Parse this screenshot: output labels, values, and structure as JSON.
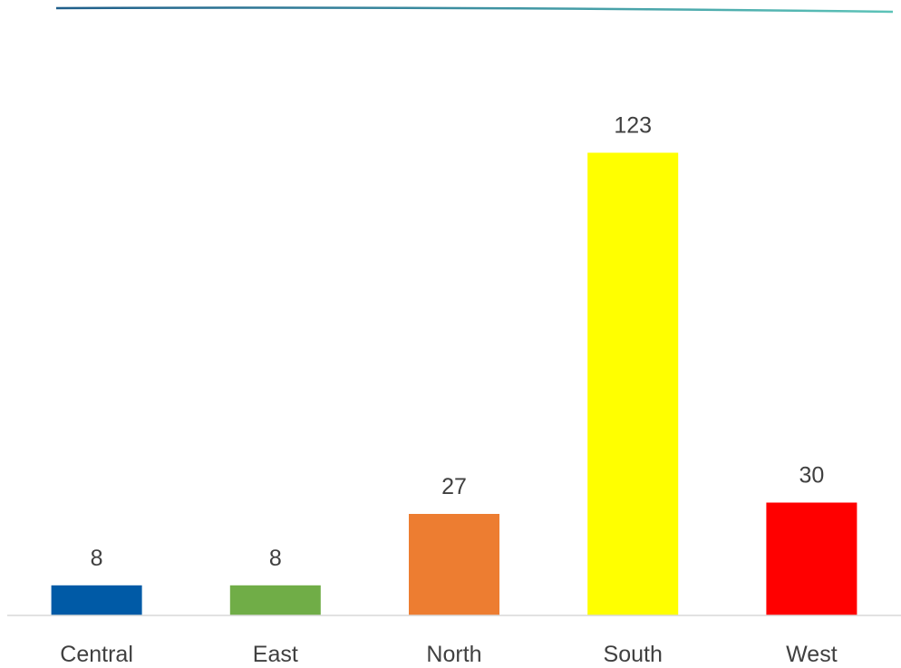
{
  "chart_data": {
    "type": "bar",
    "categories": [
      "Central",
      "East",
      "North",
      "South",
      "West"
    ],
    "values": [
      8,
      8,
      27,
      123,
      30
    ],
    "data_labels": [
      "8",
      "8",
      "27",
      "123",
      "30"
    ],
    "colors": [
      "#005aa6",
      "#70ad47",
      "#ed7d31",
      "#ffff00",
      "#ff0000"
    ],
    "title": "",
    "xlabel": "",
    "ylabel": "",
    "ylim": [
      0,
      140
    ],
    "grid": false,
    "legend": "none"
  }
}
